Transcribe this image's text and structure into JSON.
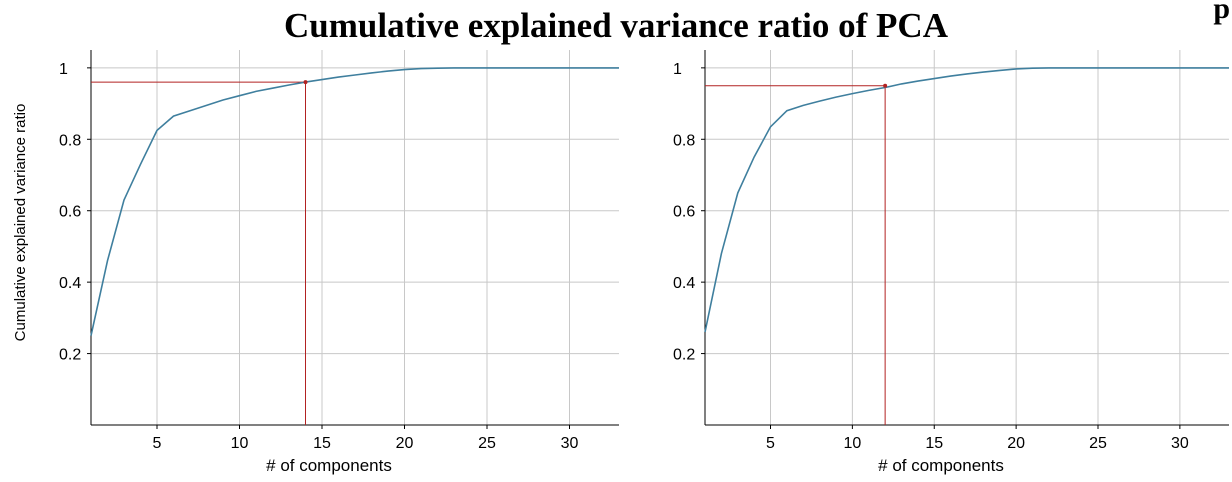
{
  "page": {
    "title": "Cumulative explained variance ratio of PCA",
    "corner_fragment": "p"
  },
  "colors": {
    "curve": "#3f7f9e",
    "marker_line": "#b22222",
    "grid": "#c8c8c8",
    "axis": "#000000"
  },
  "chart_data": [
    {
      "type": "line",
      "xlabel": "# of components",
      "ylabel": "Cumulative explained variance ratio",
      "xlim": [
        1,
        33
      ],
      "ylim": [
        0,
        1.05
      ],
      "xticks": [
        5,
        10,
        15,
        20,
        25,
        30
      ],
      "yticks": [
        0.2,
        0.4,
        0.6,
        0.8,
        1
      ],
      "ytick_labels": [
        "0.2",
        "0.4",
        "0.6",
        "0.8",
        "1"
      ],
      "grid": true,
      "x": [
        1,
        2,
        3,
        4,
        5,
        6,
        7,
        8,
        9,
        10,
        11,
        12,
        13,
        14,
        15,
        16,
        17,
        18,
        19,
        20,
        21,
        22,
        23,
        24,
        25,
        26,
        27,
        28,
        29,
        30,
        31,
        32,
        33
      ],
      "y": [
        0.25,
        0.46,
        0.63,
        0.73,
        0.825,
        0.865,
        0.88,
        0.895,
        0.91,
        0.922,
        0.934,
        0.943,
        0.952,
        0.96,
        0.967,
        0.974,
        0.98,
        0.986,
        0.991,
        0.995,
        0.998,
        0.999,
        1.0,
        1.0,
        1.0,
        1.0,
        1.0,
        1.0,
        1.0,
        1.0,
        1.0,
        1.0,
        1.0
      ],
      "threshold": {
        "x": 14,
        "y": 0.96
      }
    },
    {
      "type": "line",
      "xlabel": "# of components",
      "ylabel": "",
      "xlim": [
        1,
        33
      ],
      "ylim": [
        0,
        1.05
      ],
      "xticks": [
        5,
        10,
        15,
        20,
        25,
        30
      ],
      "yticks": [
        0.2,
        0.4,
        0.6,
        0.8,
        1
      ],
      "ytick_labels": [
        "0.2",
        "0.4",
        "0.6",
        "0.8",
        "1"
      ],
      "grid": true,
      "x": [
        1,
        2,
        3,
        4,
        5,
        6,
        7,
        8,
        9,
        10,
        11,
        12,
        13,
        14,
        15,
        16,
        17,
        18,
        19,
        20,
        21,
        22,
        23,
        24,
        25,
        26,
        27,
        28,
        29,
        30,
        31,
        32,
        33
      ],
      "y": [
        0.26,
        0.48,
        0.65,
        0.75,
        0.835,
        0.88,
        0.895,
        0.907,
        0.918,
        0.928,
        0.937,
        0.945,
        0.955,
        0.963,
        0.97,
        0.977,
        0.983,
        0.988,
        0.993,
        0.997,
        0.999,
        1.0,
        1.0,
        1.0,
        1.0,
        1.0,
        1.0,
        1.0,
        1.0,
        1.0,
        1.0,
        1.0,
        1.0
      ],
      "threshold": {
        "x": 12,
        "y": 0.95
      }
    }
  ]
}
